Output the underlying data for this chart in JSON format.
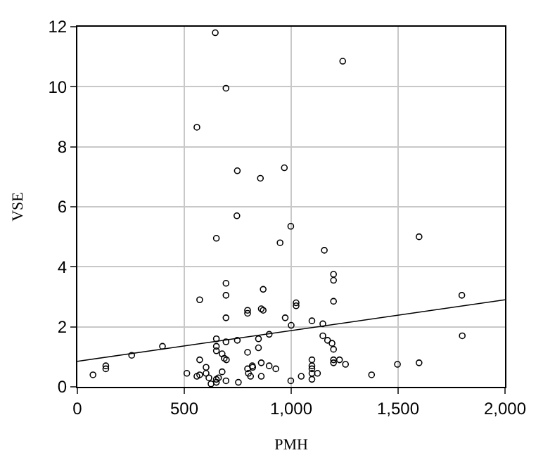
{
  "chart_data": {
    "type": "scatter",
    "xlabel": "PMH",
    "ylabel": "VSE",
    "xlim": [
      0,
      2000
    ],
    "ylim": [
      0,
      12
    ],
    "xticks": [
      0,
      500,
      {
        "value": 1000,
        "label": "1,000"
      },
      {
        "value": 1500,
        "label": "1,500"
      },
      {
        "value": 2000,
        "label": "2,000"
      }
    ],
    "yticks": [
      0,
      2,
      4,
      6,
      8,
      10,
      12
    ],
    "grid": true,
    "series": [
      {
        "color": "#000000",
        "marker": "circle",
        "x": [
          645,
          1241,
          695,
          559,
          748,
          968,
          856,
          746,
          998,
          650,
          948,
          1598,
          1155,
          695,
          695,
          869,
          572,
          1198,
          1198,
          1798,
          695,
          796,
          796,
          860,
          869,
          972,
          1023,
          1023,
          1000,
          1097,
          1198,
          398,
          254,
          133,
          133,
          73,
          650,
          650,
          650,
          695,
          748,
          847,
          847,
          897,
          796,
          1148,
          1148,
          1170,
          1191,
          1198,
          1800,
          512,
          572,
          572,
          602,
          602,
          559,
          615,
          625,
          650,
          650,
          660,
          677,
          687,
          697,
          677,
          695,
          753,
          796,
          800,
          810,
          818,
          820,
          860,
          860,
          897,
          928,
          998,
          1047,
          1097,
          1097,
          1097,
          1097,
          1097,
          1123,
          1198,
          1198,
          1226,
          1254,
          1497,
          1598,
          1376
        ],
        "values": [
          11.8,
          10.85,
          9.95,
          8.65,
          7.2,
          7.3,
          6.95,
          5.7,
          5.35,
          4.95,
          4.8,
          5.0,
          4.55,
          3.45,
          3.05,
          3.25,
          2.9,
          3.75,
          3.55,
          3.05,
          2.3,
          2.55,
          2.45,
          2.6,
          2.55,
          2.3,
          2.8,
          2.7,
          2.05,
          2.2,
          2.85,
          1.35,
          1.05,
          0.7,
          0.6,
          0.4,
          1.6,
          1.2,
          1.35,
          1.5,
          1.55,
          1.6,
          1.3,
          1.75,
          1.15,
          2.1,
          1.7,
          1.55,
          1.45,
          1.25,
          1.7,
          0.45,
          0.9,
          0.4,
          0.65,
          0.45,
          0.35,
          0.3,
          0.1,
          0.25,
          0.15,
          0.3,
          1.1,
          0.95,
          0.9,
          0.5,
          0.2,
          0.15,
          0.6,
          0.45,
          0.35,
          0.7,
          0.65,
          0.8,
          0.35,
          0.7,
          0.6,
          0.2,
          0.35,
          0.9,
          0.7,
          0.6,
          0.45,
          0.25,
          0.45,
          0.9,
          0.8,
          0.9,
          0.75,
          0.75,
          0.8,
          0.4
        ]
      },
      {
        "type": "line",
        "marker": "none",
        "color": "#000000",
        "x": [
          0,
          2000
        ],
        "values": [
          0.85,
          2.9
        ]
      }
    ]
  }
}
